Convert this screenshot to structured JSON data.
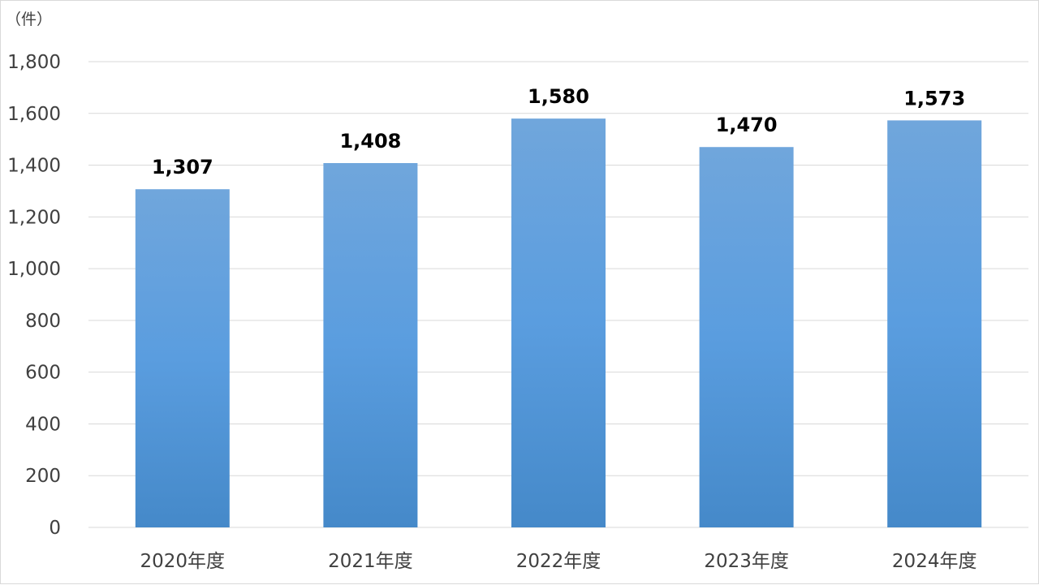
{
  "chart_data": {
    "type": "bar",
    "unit_label": "（件）",
    "categories": [
      "2020年度",
      "2021年度",
      "2022年度",
      "2023年度",
      "2024年度"
    ],
    "values": [
      1307,
      1408,
      1580,
      1470,
      1573
    ],
    "data_labels": [
      "1,307",
      "1,408",
      "1,580",
      "1,470",
      "1,573"
    ],
    "y_ticks": [
      0,
      200,
      400,
      600,
      800,
      1000,
      1200,
      1400,
      1600,
      1800
    ],
    "y_tick_labels": [
      "0",
      "200",
      "400",
      "600",
      "800",
      "1,000",
      "1,200",
      "1,400",
      "1,600",
      "1,800"
    ],
    "ylim": [
      0,
      1800
    ],
    "grid": true,
    "legend": "none",
    "colors": {
      "bar_top": "#70a6dc",
      "bar_mid": "#5a9ddf",
      "bar_bottom": "#4589c9",
      "grid": "#d9d9d9",
      "axis_text": "#404040",
      "data_label": "#000000"
    }
  }
}
